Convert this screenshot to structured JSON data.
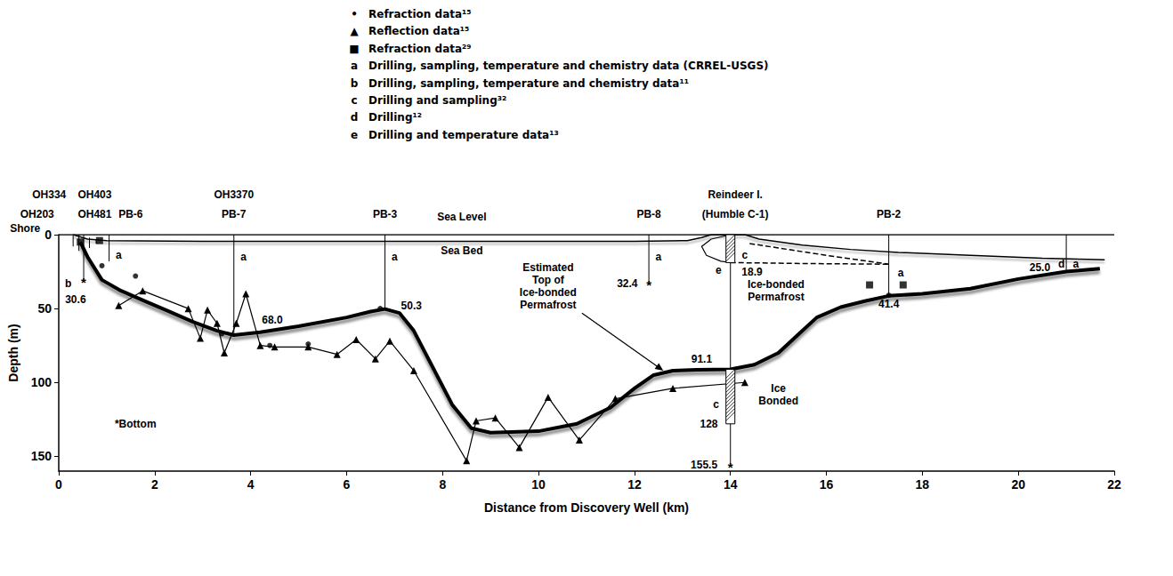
{
  "chart_data": {
    "type": "line",
    "x_label": "Distance from Discovery Well (km)",
    "y_label": "Depth (m)",
    "xlim": [
      0,
      22
    ],
    "xticks": [
      0,
      2,
      4,
      6,
      8,
      10,
      12,
      14,
      16,
      18,
      20,
      22
    ],
    "ylim": [
      160,
      0
    ],
    "yticks": [
      0,
      50,
      100,
      150
    ],
    "grid": false,
    "sea_level": 0,
    "key": [
      {
        "symbol": "•",
        "text": "Refraction data¹⁵"
      },
      {
        "symbol": "▲",
        "text": "Reflection data¹⁵"
      },
      {
        "symbol": "■",
        "text": "Refraction data²⁹"
      },
      {
        "symbol": "a",
        "text": "Drilling, sampling, temperature and chemistry data (CRREL-USGS)"
      },
      {
        "symbol": "b",
        "text": "Drilling, sampling, temperature and chemistry data¹¹"
      },
      {
        "symbol": "c",
        "text": "Drilling and sampling³²"
      },
      {
        "symbol": "d",
        "text": "Drilling¹²"
      },
      {
        "symbol": "e",
        "text": "Drilling and temperature data¹³"
      }
    ],
    "series": [
      {
        "type": "line",
        "color": "#000000",
        "line_style": "hatched",
        "values": [
          [
            0.3,
            0
          ],
          [
            0.6,
            3
          ],
          [
            1,
            4
          ],
          [
            3,
            4.5
          ],
          [
            6,
            4.5
          ],
          [
            9,
            4.5
          ],
          [
            12,
            4.5
          ],
          [
            13.1,
            4
          ],
          [
            13.4,
            2
          ],
          [
            13.6,
            0
          ],
          [
            14.3,
            0
          ],
          [
            14.6,
            3
          ],
          [
            15.5,
            7
          ],
          [
            16.5,
            10
          ],
          [
            17.5,
            12
          ],
          [
            19,
            14
          ],
          [
            20.5,
            16
          ],
          [
            21.8,
            17
          ]
        ]
      },
      {
        "type": "line",
        "color": "#000000",
        "line_style": "bold",
        "values": [
          [
            0.45,
            5
          ],
          [
            0.6,
            15
          ],
          [
            0.9,
            30.6
          ],
          [
            1.3,
            38
          ],
          [
            1.8,
            45
          ],
          [
            2.3,
            52
          ],
          [
            2.8,
            59
          ],
          [
            3.3,
            65
          ],
          [
            3.65,
            68
          ],
          [
            4.2,
            66
          ],
          [
            5,
            62
          ],
          [
            6,
            56
          ],
          [
            6.5,
            52
          ],
          [
            6.8,
            50.3
          ],
          [
            7.1,
            53
          ],
          [
            7.4,
            65
          ],
          [
            7.8,
            90
          ],
          [
            8.2,
            115
          ],
          [
            8.6,
            131
          ],
          [
            9,
            134
          ],
          [
            10,
            133
          ],
          [
            10.8,
            128
          ],
          [
            11.5,
            117
          ],
          [
            12,
            104
          ],
          [
            12.4,
            95
          ],
          [
            12.8,
            92
          ],
          [
            13.3,
            91.5
          ],
          [
            14,
            91.1
          ],
          [
            14.5,
            88
          ],
          [
            15,
            80
          ],
          [
            15.4,
            68
          ],
          [
            15.8,
            56
          ],
          [
            16.3,
            49
          ],
          [
            16.8,
            45
          ],
          [
            17.3,
            41.4
          ],
          [
            18,
            40
          ],
          [
            19,
            36.5
          ],
          [
            20,
            30
          ],
          [
            21,
            25
          ],
          [
            21.7,
            23
          ]
        ]
      },
      {
        "type": "line",
        "color": "#000000",
        "line_style": "solid",
        "values": [
          [
            14.0,
            0
          ],
          [
            13.6,
            3
          ],
          [
            13.4,
            8
          ],
          [
            13.5,
            14
          ],
          [
            13.8,
            18
          ],
          [
            14.0,
            18.9
          ]
        ]
      },
      {
        "type": "line",
        "color": "#000000",
        "line_style": "dashed",
        "values": [
          [
            14.4,
            6
          ],
          [
            15,
            9
          ],
          [
            16,
            14
          ],
          [
            17.3,
            20
          ]
        ]
      },
      {
        "type": "line",
        "color": "#000000",
        "line_style": "dashed",
        "values": [
          [
            14.0,
            18.9
          ],
          [
            15.5,
            19.5
          ],
          [
            17.3,
            20
          ]
        ]
      },
      {
        "type": "line",
        "color": "#000000",
        "line_style": "solid",
        "marker": "triangle",
        "values": [
          [
            1.25,
            48
          ],
          [
            1.75,
            38
          ],
          [
            2.7,
            50
          ],
          [
            2.95,
            70
          ],
          [
            3.1,
            51
          ],
          [
            3.3,
            60
          ],
          [
            3.45,
            80
          ],
          [
            3.7,
            60
          ],
          [
            3.9,
            40
          ],
          [
            4.2,
            75
          ],
          [
            4.5,
            76
          ],
          [
            5.2,
            76
          ],
          [
            5.8,
            81
          ],
          [
            6.2,
            71
          ],
          [
            6.6,
            84
          ],
          [
            6.9,
            72
          ],
          [
            7.4,
            92
          ],
          [
            8.5,
            153
          ],
          [
            8.7,
            126
          ],
          [
            9.1,
            124
          ],
          [
            9.6,
            144
          ],
          [
            10.2,
            110
          ],
          [
            10.85,
            139
          ],
          [
            11.6,
            111
          ],
          [
            12.8,
            104
          ],
          [
            14.3,
            100
          ]
        ]
      },
      {
        "type": "scatter",
        "color": "#000000",
        "marker": "circle",
        "values": [
          [
            0.9,
            21
          ],
          [
            1.6,
            28
          ],
          [
            3.4,
            67
          ],
          [
            4.4,
            75
          ],
          [
            5.2,
            74
          ],
          [
            6.7,
            50
          ],
          [
            17.3,
            41
          ]
        ]
      },
      {
        "type": "scatter",
        "color": "#000000",
        "marker": "square",
        "values": [
          [
            0.45,
            5
          ],
          [
            0.85,
            4
          ],
          [
            16.9,
            34
          ],
          [
            17.6,
            34
          ]
        ]
      }
    ],
    "boreholes": [
      {
        "x": 0.3,
        "top": 0,
        "bottom": 8
      },
      {
        "x": 0.42,
        "top": 0,
        "bottom": 11
      },
      {
        "x": 0.52,
        "top": 0,
        "bottom": 30.6,
        "mark": "*"
      },
      {
        "x": 0.64,
        "top": 2,
        "bottom": 9
      },
      {
        "x": 0.78,
        "top": 3,
        "bottom": 6
      },
      {
        "x": 1.05,
        "top": 0,
        "bottom": 18
      },
      {
        "x": 3.65,
        "top": 0,
        "bottom": 68.0
      },
      {
        "x": 6.8,
        "top": 0,
        "bottom": 50.3
      },
      {
        "x": 12.3,
        "top": 0,
        "bottom": 32.4,
        "mark": "*"
      },
      {
        "x": 14.0,
        "top": 0,
        "bottom": 155.5,
        "mark": "*"
      },
      {
        "x": 17.3,
        "top": 0,
        "bottom": 41.4
      },
      {
        "x": 21.0,
        "top": 0,
        "bottom": 25.0
      }
    ],
    "intervals": [
      {
        "x": 14.0,
        "from": 0,
        "to": 18.9
      },
      {
        "x": 14.0,
        "from": 91.1,
        "to": 128
      }
    ],
    "depth_labels": [
      {
        "value": 30.6,
        "at": [
          0.35,
          44
        ]
      },
      {
        "value": 68.0,
        "label": "68.0",
        "at": [
          4.45,
          58
        ]
      },
      {
        "value": 50.3,
        "at": [
          7.35,
          48
        ]
      },
      {
        "value": 32.4,
        "at": [
          11.85,
          33
        ]
      },
      {
        "value": 18.9,
        "at": [
          14.45,
          25
        ]
      },
      {
        "value": 91.1,
        "at": [
          13.4,
          84
        ]
      },
      {
        "value": 128,
        "at": [
          13.55,
          128
        ]
      },
      {
        "value": 155.5,
        "at": [
          13.45,
          155.5
        ]
      },
      {
        "value": 41.4,
        "at": [
          17.3,
          47
        ]
      },
      {
        "value": 25.0,
        "label": "25.0",
        "at": [
          20.45,
          22
        ]
      }
    ],
    "annotations": [
      {
        "text": "Shore",
        "at": [
          -0.7,
          -4
        ]
      },
      {
        "text": "OH203",
        "at": [
          -0.45,
          -14
        ]
      },
      {
        "text": "OH334",
        "at": [
          -0.2,
          -27
        ]
      },
      {
        "text": "OH403",
        "at": [
          0.75,
          -27
        ]
      },
      {
        "text": "OH481",
        "at": [
          0.75,
          -14
        ]
      },
      {
        "text": "PB-6",
        "at": [
          1.5,
          -14
        ]
      },
      {
        "text": "OH3370",
        "at": [
          3.65,
          -27
        ]
      },
      {
        "text": "PB-7",
        "at": [
          3.65,
          -14
        ]
      },
      {
        "text": "PB-3",
        "at": [
          6.8,
          -14
        ]
      },
      {
        "text": "Sea Level",
        "at": [
          8.4,
          -12
        ]
      },
      {
        "text": "PB-8",
        "at": [
          12.3,
          -14
        ]
      },
      {
        "text": "Reindeer I.",
        "at": [
          14.1,
          -27
        ]
      },
      {
        "text": "(Humble C-1)",
        "at": [
          14.1,
          -14
        ]
      },
      {
        "text": "PB-2",
        "at": [
          17.3,
          -14
        ]
      },
      {
        "text": "Sea Bed",
        "at": [
          8.4,
          11
        ]
      },
      {
        "text": "Estimated\nTop of\nIce-bonded\nPermafrost",
        "at": [
          10.2,
          35
        ],
        "pointer": [
          12.6,
          92
        ]
      },
      {
        "text": "Ice-bonded\nPermafrost",
        "at": [
          14.95,
          38
        ]
      },
      {
        "text": "Ice\nBonded",
        "at": [
          15.0,
          108
        ]
      },
      {
        "text": "*Bottom",
        "at": [
          1.6,
          128
        ]
      },
      {
        "text": "b",
        "at": [
          0.2,
          33
        ]
      },
      {
        "text": "a",
        "at": [
          1.25,
          14
        ]
      },
      {
        "text": "a",
        "at": [
          3.85,
          15
        ]
      },
      {
        "text": "a",
        "at": [
          7.0,
          15
        ]
      },
      {
        "text": "a",
        "at": [
          12.5,
          15
        ]
      },
      {
        "text": "c",
        "at": [
          14.3,
          14
        ]
      },
      {
        "text": "e",
        "at": [
          13.75,
          24
        ]
      },
      {
        "text": "c",
        "at": [
          13.7,
          115
        ]
      },
      {
        "text": "a",
        "at": [
          17.55,
          26
        ]
      },
      {
        "text": "d",
        "at": [
          20.9,
          20
        ]
      },
      {
        "text": "a",
        "at": [
          21.2,
          20
        ]
      }
    ]
  }
}
